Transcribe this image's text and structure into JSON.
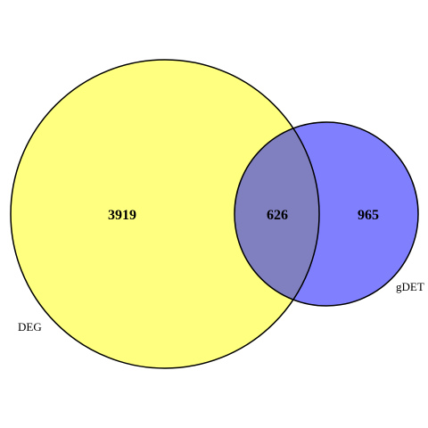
{
  "diagram": {
    "type": "venn-2",
    "sets": [
      {
        "name": "DEG",
        "color": "#ffff80"
      },
      {
        "name": "gDET",
        "color": "#8080ff"
      }
    ],
    "intersection_color": "#8080c0",
    "outline_color": "#000000",
    "counts": {
      "deg_only": "3919",
      "both": "626",
      "gdet_only": "965"
    }
  }
}
